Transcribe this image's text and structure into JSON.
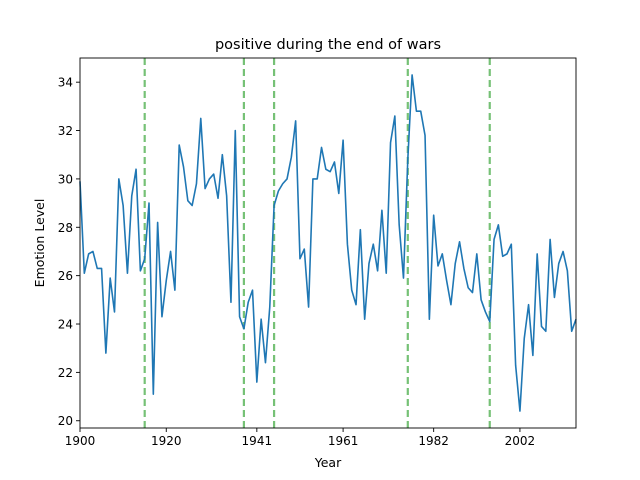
{
  "chart_data": {
    "type": "line",
    "title": "positive during the end of wars",
    "xlabel": "Year",
    "ylabel": "Emotion Level",
    "xlim": [
      1900,
      2015
    ],
    "ylim": [
      19.7,
      35.0
    ],
    "x_ticks": [
      1900,
      1920,
      1941,
      1961,
      1982,
      2002
    ],
    "y_ticks": [
      20,
      22,
      24,
      26,
      28,
      30,
      32,
      34
    ],
    "grid": false,
    "legend": "none",
    "series_color": "#1f77b4",
    "marker_color": "#2ca02c",
    "war_end_markers": [
      1915,
      1938,
      1945,
      1976,
      1995
    ],
    "series": [
      {
        "x": [
          1900,
          1901,
          1902,
          1903,
          1904,
          1905,
          1906,
          1907,
          1908,
          1909,
          1910,
          1911,
          1912,
          1913,
          1914,
          1915,
          1916,
          1917,
          1918,
          1919,
          1920,
          1921,
          1922,
          1923,
          1924,
          1925,
          1926,
          1927,
          1928,
          1929,
          1930,
          1931,
          1932,
          1933,
          1934,
          1935,
          1936,
          1937,
          1938,
          1939,
          1940,
          1941,
          1942,
          1943,
          1944,
          1945,
          1946,
          1947,
          1948,
          1949,
          1950,
          1951,
          1952,
          1953,
          1954,
          1955,
          1956,
          1957,
          1958,
          1959,
          1960,
          1961,
          1962,
          1963,
          1964,
          1965,
          1966,
          1967,
          1968,
          1969,
          1970,
          1971,
          1972,
          1973,
          1974,
          1975,
          1976,
          1977,
          1978,
          1979,
          1980,
          1981,
          1982,
          1983,
          1984,
          1985,
          1986,
          1987,
          1988,
          1989,
          1990,
          1991,
          1992,
          1993,
          1994,
          1995,
          1996,
          1997,
          1998,
          1999,
          2000,
          2001,
          2002,
          2003,
          2004,
          2005,
          2006,
          2007,
          2008,
          2009,
          2010,
          2011,
          2012,
          2013,
          2014,
          2015
        ],
        "values": [
          29.9,
          26.1,
          26.9,
          27.0,
          26.3,
          26.3,
          22.8,
          25.9,
          24.5,
          30.0,
          28.9,
          26.1,
          29.3,
          30.4,
          26.2,
          26.7,
          29.0,
          21.1,
          28.2,
          24.3,
          25.8,
          27.0,
          25.4,
          31.4,
          30.5,
          29.1,
          28.9,
          29.8,
          32.5,
          29.6,
          30.0,
          30.2,
          29.2,
          31.0,
          29.3,
          24.9,
          32.0,
          24.3,
          23.8,
          24.9,
          25.4,
          21.6,
          24.2,
          22.4,
          24.7,
          28.9,
          29.5,
          29.8,
          30.0,
          30.9,
          32.4,
          26.7,
          27.1,
          24.7,
          30.0,
          30.0,
          31.3,
          30.4,
          30.3,
          30.7,
          29.4,
          31.6,
          27.3,
          25.4,
          24.8,
          27.9,
          24.2,
          26.5,
          27.3,
          26.2,
          28.7,
          26.1,
          31.5,
          32.6,
          28.1,
          25.9,
          30.8,
          34.3,
          32.8,
          32.8,
          31.8,
          24.2,
          28.5,
          26.4,
          26.9,
          25.8,
          24.8,
          26.5,
          27.4,
          26.3,
          25.5,
          25.3,
          26.9,
          25.0,
          24.5,
          24.1,
          27.5,
          28.1,
          26.8,
          26.9,
          27.3,
          22.3,
          20.4,
          23.4,
          24.8,
          22.7,
          26.9,
          23.9,
          23.7,
          27.5,
          25.1,
          26.5,
          27.0,
          26.2,
          23.7,
          24.2
        ]
      }
    ]
  }
}
